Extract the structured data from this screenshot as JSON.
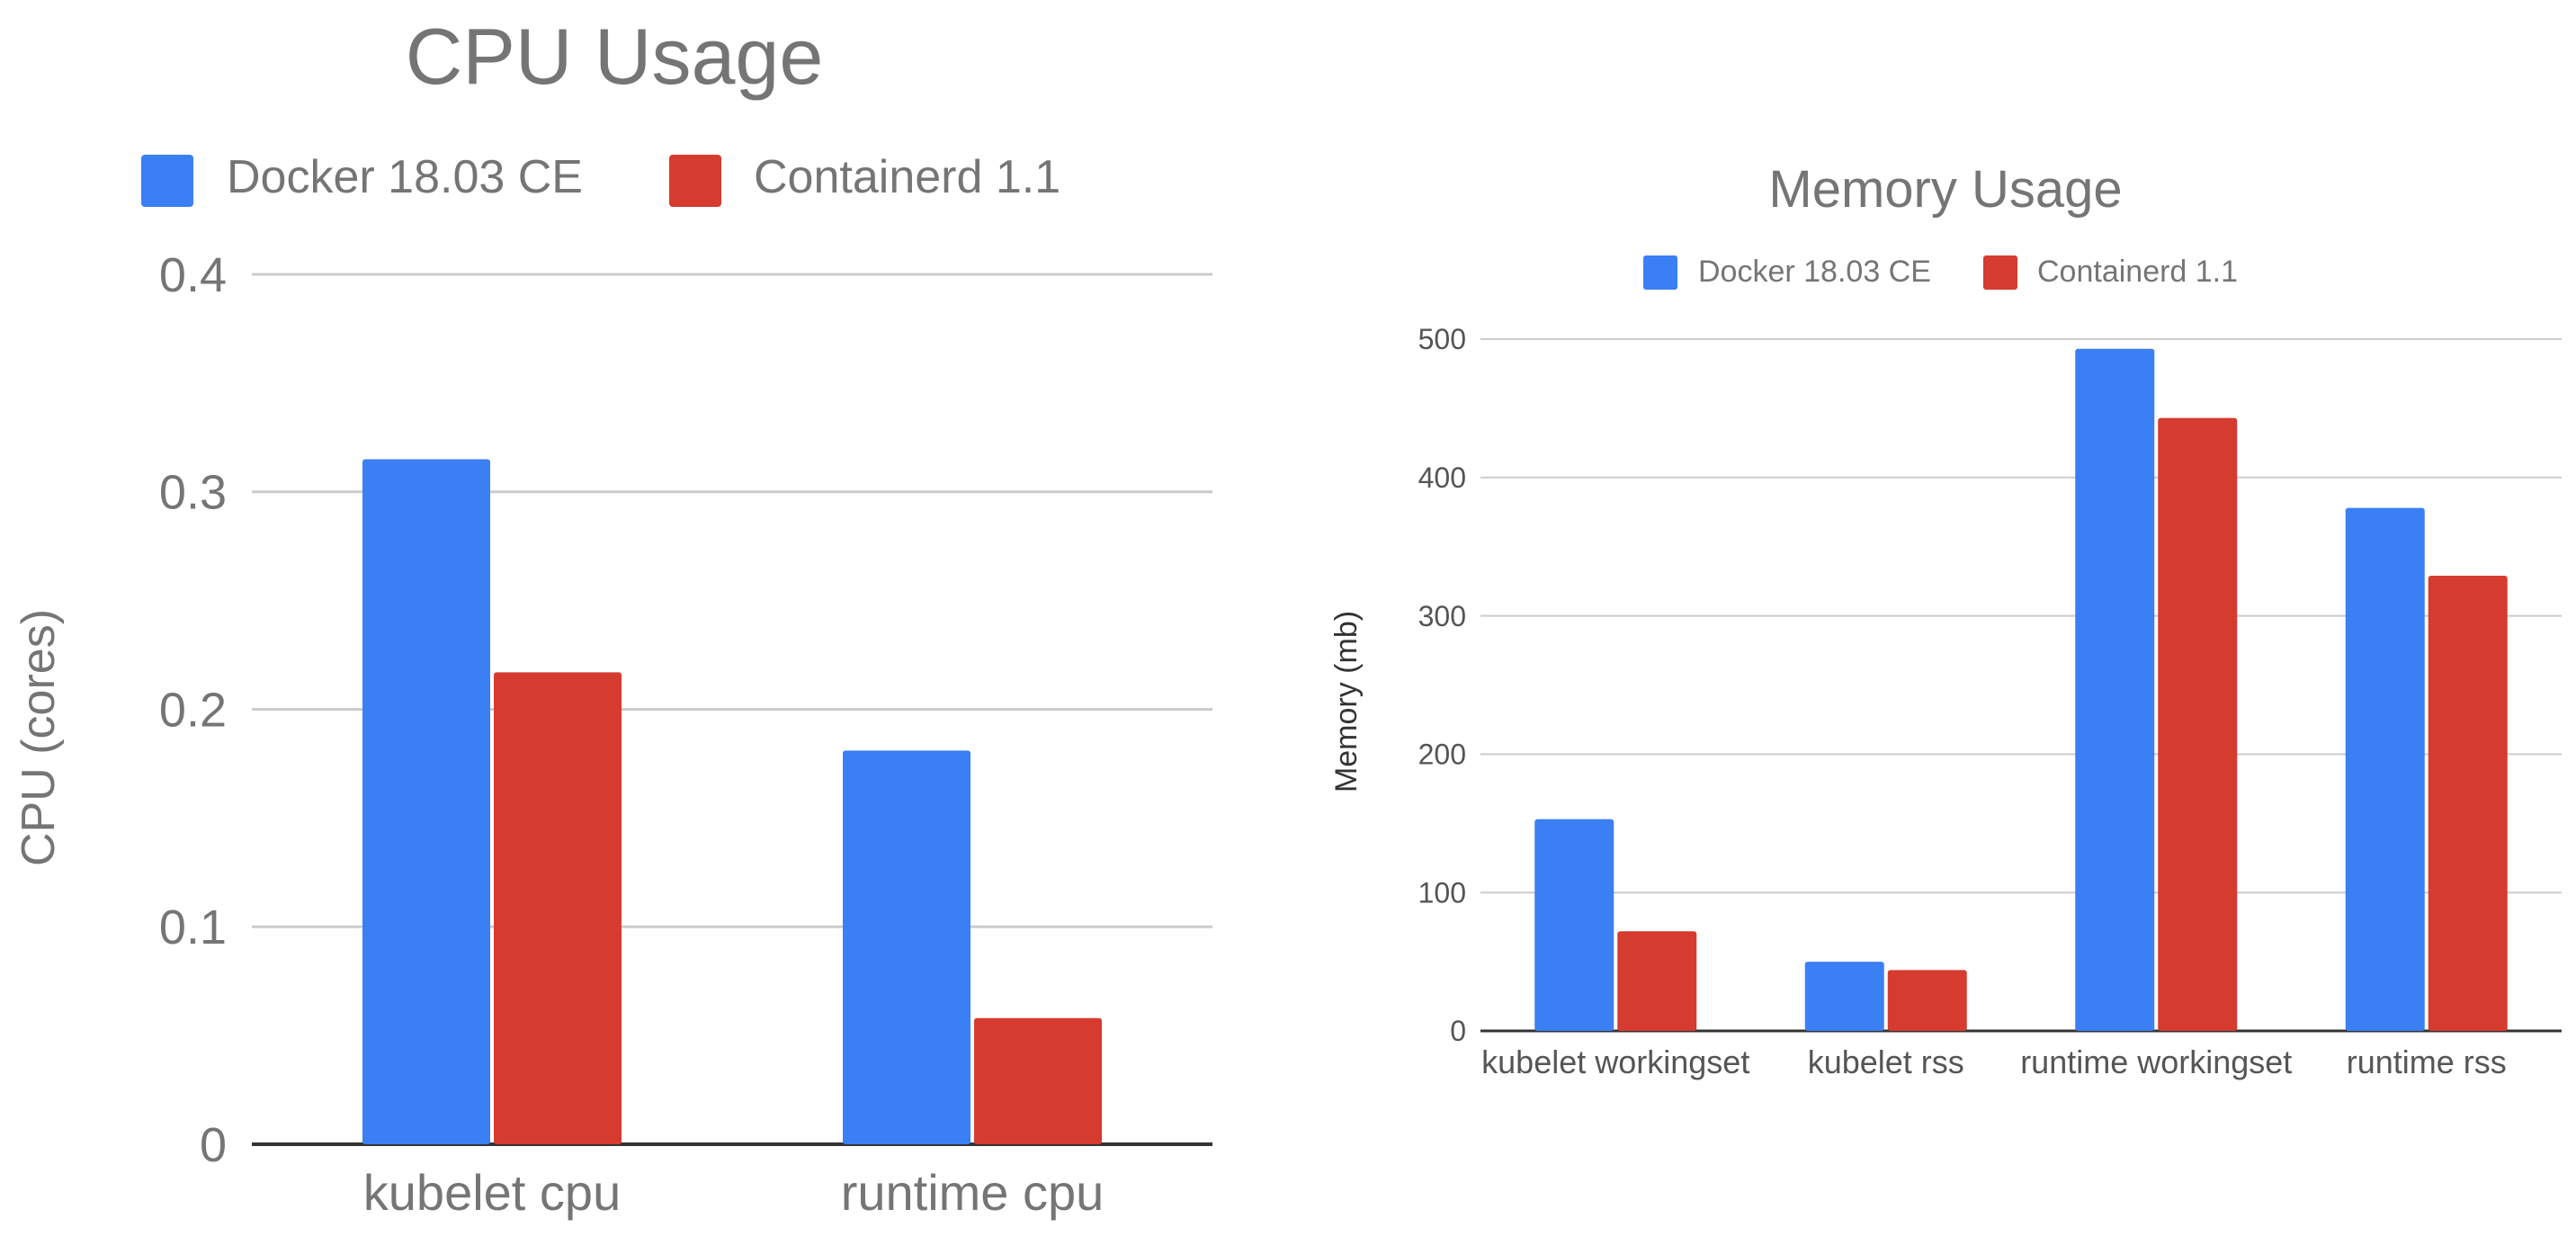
{
  "chart_data": [
    {
      "type": "bar",
      "title": "CPU Usage",
      "xlabel": "",
      "ylabel": "CPU (cores)",
      "ylim": [
        0,
        0.4
      ],
      "yticks": [
        0,
        0.1,
        0.2,
        0.3,
        0.4
      ],
      "ytick_labels": [
        "0",
        "0.1",
        "0.2",
        "0.3",
        "0.4"
      ],
      "grid": true,
      "legend_position": "top",
      "categories": [
        "kubelet cpu",
        "runtime cpu"
      ],
      "series": [
        {
          "name": "Docker 18.03 CE",
          "color": "#3b7ff4",
          "values": [
            0.315,
            0.181
          ]
        },
        {
          "name": "Containerd 1.1",
          "color": "#d63b2f",
          "values": [
            0.217,
            0.058
          ]
        }
      ]
    },
    {
      "type": "bar",
      "title": "Memory Usage",
      "xlabel": "",
      "ylabel": "Memory (mb)",
      "ylim": [
        0,
        500
      ],
      "yticks": [
        0,
        100,
        200,
        300,
        400,
        500
      ],
      "ytick_labels": [
        "0",
        "100",
        "200",
        "300",
        "400",
        "500"
      ],
      "grid": true,
      "legend_position": "top",
      "categories": [
        "kubelet workingset",
        "kubelet rss",
        "runtime workingset",
        "runtime rss"
      ],
      "series": [
        {
          "name": "Docker 18.03 CE",
          "color": "#3b7ff4",
          "values": [
            153,
            50,
            493,
            378
          ]
        },
        {
          "name": "Containerd 1.1",
          "color": "#d63b2f",
          "values": [
            72,
            44,
            443,
            329
          ]
        }
      ]
    }
  ]
}
